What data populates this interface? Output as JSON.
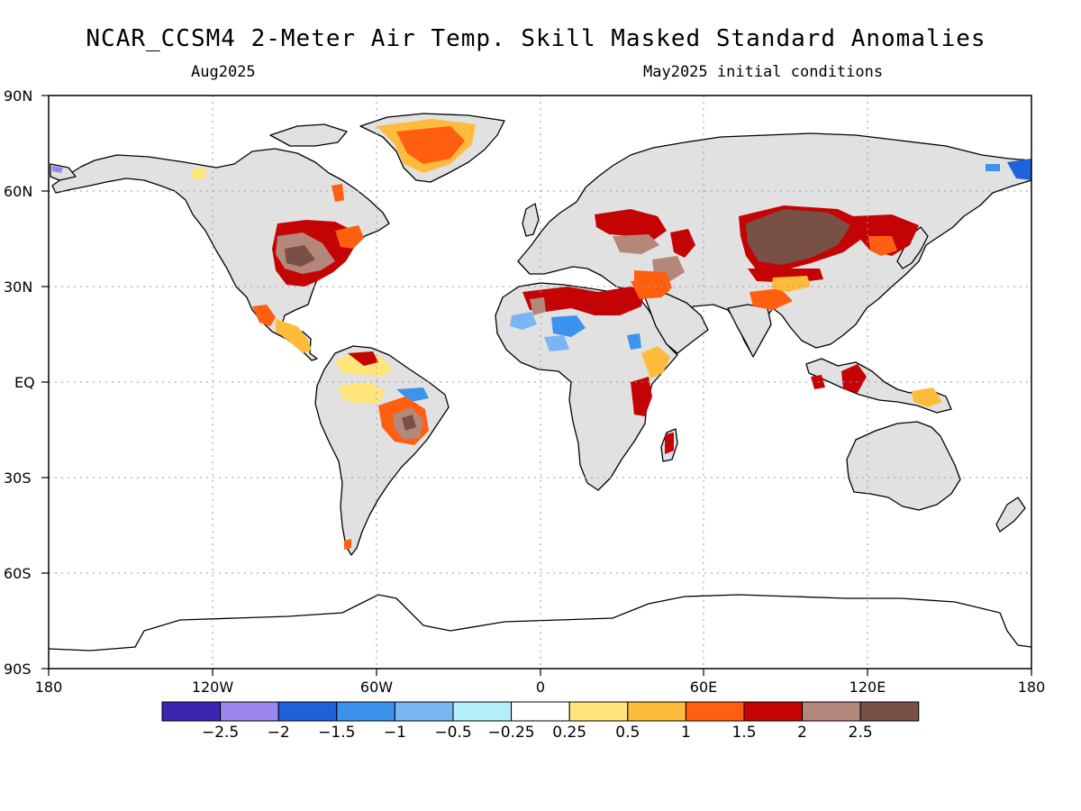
{
  "title": "NCAR_CCSM4 2-Meter Air Temp. Skill Masked Standard Anomalies",
  "valid_month": "Aug2025",
  "init_conditions": "May2025 initial conditions",
  "lat_labels": [
    "90N",
    "60N",
    "30N",
    "EQ",
    "30S",
    "60S",
    "90S"
  ],
  "lon_labels": [
    "180",
    "120W",
    "60W",
    "0",
    "60E",
    "120E",
    "180"
  ],
  "colorbar": {
    "colors": [
      "#3d25b0",
      "#9b86ee",
      "#1f62dc",
      "#3c93ee",
      "#78b6f4",
      "#b4eefa",
      "#ffffff",
      "#ffe57a",
      "#ffbb3c",
      "#ff5f0f",
      "#c40404",
      "#b3877a",
      "#785046"
    ],
    "labels": [
      "−2.5",
      "−2",
      "−1.5",
      "−1",
      "−0.5",
      "−0.25",
      "0.25",
      "0.5",
      "1",
      "1.5",
      "2",
      "2.5"
    ]
  },
  "colors": {
    "land": "#e1e1e1",
    "ocean": "#ffffff",
    "coast": "#000000",
    "grid": "#9a9a9a"
  },
  "anomaly_regions": [
    {
      "region": "Greenland",
      "level": "1 to 1.5"
    },
    {
      "region": "Eastern United States",
      "level": "2 to 2.5+"
    },
    {
      "region": "Mexico / Central America",
      "level": "0.5 to 1.5"
    },
    {
      "region": "Northern Africa",
      "level": "1.5 to 2"
    },
    {
      "region": "Sahel",
      "level": "-1.5 to -0.5"
    },
    {
      "region": "Eastern Europe / Caspian",
      "level": "1.5 to 2.5+"
    },
    {
      "region": "Mongolia / Northern China",
      "level": "2.5+"
    },
    {
      "region": "Northeast China / Korea",
      "level": "2"
    },
    {
      "region": "Amazon / Brazil",
      "level": "0.5 to 2.5+"
    },
    {
      "region": "East Africa",
      "level": "1 to 2"
    },
    {
      "region": "Borneo / Indonesia",
      "level": "1.5 to 2"
    },
    {
      "region": "Far East Russia",
      "level": "-1.5"
    }
  ]
}
